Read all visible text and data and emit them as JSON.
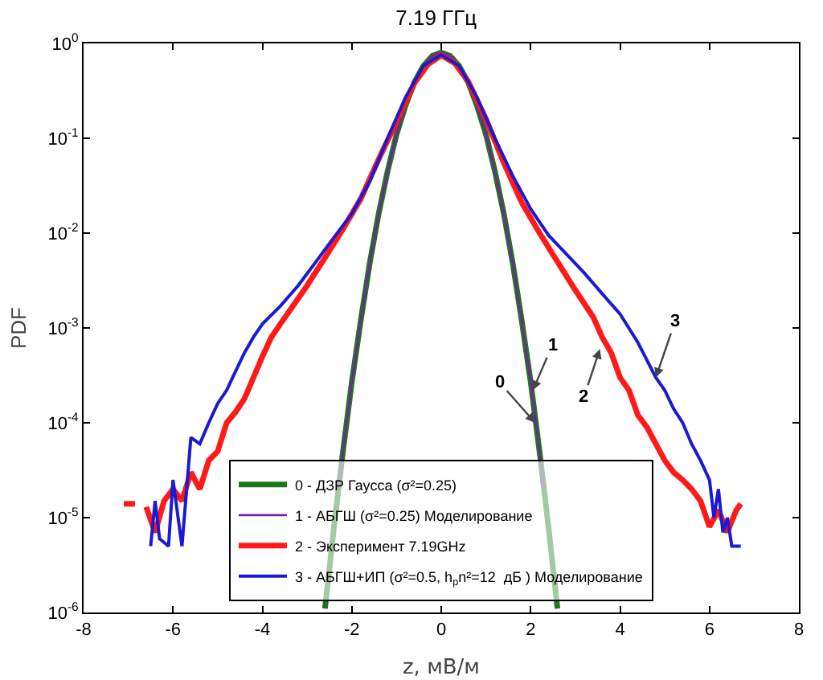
{
  "chart_data": {
    "type": "line",
    "title": "7.19 ГГц",
    "xlabel": "z, мВ/м",
    "ylabel": "PDF",
    "log": "y",
    "grid": false,
    "legend": "bottom",
    "line_style": "solid",
    "marker": "none",
    "xlim": [
      -8,
      8
    ],
    "xticks": [
      -8,
      -6,
      -4,
      -2,
      0,
      2,
      4,
      6,
      8
    ],
    "ylim": [
      1e-06,
      1
    ],
    "yticks": [
      {
        "value": 1e-06,
        "label": "10$^{-6}$"
      },
      {
        "value": 1e-05,
        "label": "10$^{-5}$"
      },
      {
        "value": 0.0001,
        "label": "10$^{-4}$"
      },
      {
        "value": 0.001,
        "label": "10$^{-3}$"
      },
      {
        "value": 0.01,
        "label": "10$^{-2}$"
      },
      {
        "value": 0.1,
        "label": "10$^{-1}$"
      },
      {
        "value": 1,
        "label": "10$^{0}$"
      }
    ],
    "series": [
      {
        "name": "0 - ДЗР Гаусса (σ²=0.25)",
        "color": "#1a7a1a",
        "x": [
          -2.6,
          -2.4,
          -2.2,
          -2.0,
          -1.8,
          -1.6,
          -1.4,
          -1.2,
          -1.0,
          -0.8,
          -0.6,
          -0.4,
          -0.2,
          0,
          0.2,
          0.4,
          0.6,
          0.8,
          1.0,
          1.2,
          1.4,
          1.6,
          1.8,
          2.0,
          2.2,
          2.4,
          2.6
        ],
        "values": [
          1.1e-06,
          7.9e-06,
          4.9e-05,
          0.00027,
          0.0012,
          0.0048,
          0.016,
          0.045,
          0.11,
          0.22,
          0.39,
          0.58,
          0.74,
          0.8,
          0.74,
          0.58,
          0.39,
          0.22,
          0.11,
          0.045,
          0.016,
          0.0048,
          0.0012,
          0.00027,
          4.9e-05,
          7.9e-06,
          1.1e-06
        ]
      },
      {
        "name": "1 - АБГШ (σ²=0.25) Моделирование",
        "color": "#7a1fa0",
        "x": [
          -2.3,
          -2.2,
          -2.0,
          -1.8,
          -1.6,
          -1.4,
          -1.2,
          -1.0,
          -0.8,
          -0.6,
          -0.4,
          -0.2,
          0,
          0.2,
          0.4,
          0.6,
          0.8,
          1.0,
          1.2,
          1.4,
          1.6,
          1.8,
          2.0,
          2.2,
          2.3
        ],
        "values": [
          2e-05,
          4.9e-05,
          0.00027,
          0.0012,
          0.0048,
          0.016,
          0.045,
          0.11,
          0.22,
          0.39,
          0.58,
          0.74,
          0.8,
          0.74,
          0.58,
          0.39,
          0.22,
          0.11,
          0.045,
          0.016,
          0.0048,
          0.0012,
          0.00027,
          4.9e-05,
          2e-05
        ]
      },
      {
        "name": "2 - Эксперимент 7.19GHz",
        "color": "#ff1a1a",
        "x": [
          -7.1,
          -6.85,
          -6.8,
          -6.6,
          -6.4,
          -6.2,
          -6.0,
          -5.8,
          -5.6,
          -5.4,
          -5.2,
          -5.0,
          -4.8,
          -4.6,
          -4.4,
          -4.2,
          -4.0,
          -3.8,
          -3.6,
          -3.4,
          -3.0,
          -2.6,
          -2.2,
          -1.8,
          -1.4,
          -1.0,
          -0.6,
          -0.3,
          0,
          0.3,
          0.6,
          1.0,
          1.4,
          1.8,
          2.2,
          2.6,
          3.0,
          3.4,
          3.6,
          3.8,
          4.0,
          4.2,
          4.4,
          4.6,
          4.8,
          5.0,
          5.2,
          5.4,
          5.6,
          5.8,
          6.0,
          6.2,
          6.4,
          6.6,
          6.7
        ],
        "values": [
          1.4e-05,
          1.4e-05,
          null,
          1.3e-05,
          7e-06,
          1.5e-05,
          2e-05,
          1.5e-05,
          3e-05,
          2e-05,
          4e-05,
          5e-05,
          0.0001,
          0.00013,
          0.00018,
          0.0003,
          0.0005,
          0.0008,
          0.0011,
          0.0015,
          0.0028,
          0.0055,
          0.011,
          0.023,
          0.06,
          0.15,
          0.38,
          0.6,
          0.75,
          0.62,
          0.4,
          0.16,
          0.055,
          0.021,
          0.01,
          0.005,
          0.0025,
          0.0013,
          0.0008,
          0.00055,
          0.0003,
          0.00022,
          0.00012,
          9e-05,
          6e-05,
          4e-05,
          3e-05,
          2.5e-05,
          2e-05,
          1.5e-05,
          8e-06,
          1.2e-05,
          7e-06,
          1.2e-05,
          1.4e-05
        ]
      },
      {
        "name": "3 - АБГШ+ИП (σ²=0.5, h$_{p}$n²=12  дБ ) Моделирование",
        "color": "#1a1ad0",
        "x": [
          -6.5,
          -6.4,
          -6.3,
          -6.1,
          -6.0,
          -5.8,
          -5.6,
          -5.4,
          -5.2,
          -5.0,
          -4.8,
          -4.6,
          -4.4,
          -4.2,
          -4.0,
          -3.6,
          -3.2,
          -2.8,
          -2.4,
          -2.0,
          -1.6,
          -1.2,
          -0.8,
          -0.4,
          0,
          0.4,
          0.8,
          1.2,
          1.6,
          2.0,
          2.4,
          2.8,
          3.2,
          3.6,
          4.0,
          4.4,
          4.8,
          5.0,
          5.2,
          5.4,
          5.6,
          5.8,
          6.0,
          6.1,
          6.2,
          6.3,
          6.4,
          6.5,
          6.7
        ],
        "values": [
          5e-06,
          1.5e-05,
          6e-06,
          5e-06,
          2.5e-05,
          5e-06,
          7e-05,
          6e-05,
          0.0001,
          0.00016,
          0.00022,
          0.00035,
          0.00055,
          0.0008,
          0.0011,
          0.0017,
          0.0028,
          0.005,
          0.009,
          0.016,
          0.035,
          0.1,
          0.27,
          0.58,
          0.76,
          0.58,
          0.27,
          0.1,
          0.04,
          0.018,
          0.0095,
          0.006,
          0.0038,
          0.0023,
          0.0014,
          0.0007,
          0.0003,
          0.00022,
          0.00014,
          0.0001,
          6e-05,
          4e-05,
          2.5e-05,
          1e-05,
          2e-05,
          7e-06,
          1e-05,
          5e-06,
          5e-06
        ]
      }
    ],
    "annotations": [
      {
        "text": "0",
        "x": 2.1,
        "y": 0.0001
      },
      {
        "text": "1",
        "x": 2.05,
        "y": 0.00022
      },
      {
        "text": "2",
        "x": 3.55,
        "y": 0.0006
      },
      {
        "text": "3",
        "x": 4.8,
        "y": 0.0003
      }
    ]
  }
}
